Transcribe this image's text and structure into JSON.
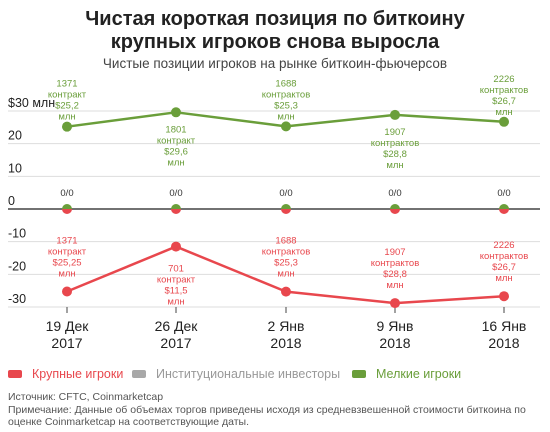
{
  "title_line1": "Чистая короткая позиция по биткоину",
  "title_line2": "крупных игроков снова выросла",
  "subtitle": "Чистые позиции игроков на рынке биткоин-фьючерсов",
  "chart_data": {
    "type": "line",
    "categories": [
      [
        "19 Дек",
        "2017"
      ],
      [
        "26 Дек",
        "2017"
      ],
      [
        "2 Янв",
        "2018"
      ],
      [
        "9 Янв",
        "2018"
      ],
      [
        "16 Янв",
        "2018"
      ]
    ],
    "y_ticks": [
      "$30 млн",
      "20",
      "10",
      "0",
      "-10",
      "-20",
      "-30"
    ],
    "ylim": [
      -30,
      30
    ],
    "grid": true,
    "legend_position": "bottom",
    "series": [
      {
        "name": "Крупные игроки",
        "color": "#e8474d",
        "values": [
          -25.25,
          -11.5,
          -25.3,
          -28.8,
          -26.7
        ],
        "labels": [
          [
            "1371",
            "контракт",
            "$25,25",
            "млн"
          ],
          [
            "701",
            "контракт",
            "$11,5",
            "млн"
          ],
          [
            "1688",
            "контрактов",
            "$25,3",
            "млн"
          ],
          [
            "1907",
            "контрактов",
            "$28,8",
            "млн"
          ],
          [
            "2226",
            "контрактов",
            "$26,7",
            "млн"
          ]
        ]
      },
      {
        "name": "Институциональные инвесторы",
        "color": "#a8a8a8",
        "values": [
          0,
          0,
          0,
          0,
          0
        ],
        "labels": [
          [
            "0/0"
          ],
          [
            "0/0"
          ],
          [
            "0/0"
          ],
          [
            "0/0"
          ],
          [
            "0/0"
          ]
        ]
      },
      {
        "name": "Мелкие игроки",
        "color": "#6a9e3a",
        "values": [
          25.2,
          29.6,
          25.3,
          28.8,
          26.7
        ],
        "labels": [
          [
            "1371",
            "контракт",
            "$25,2",
            "млн"
          ],
          [
            "1801",
            "контракт",
            "$29,6",
            "млн"
          ],
          [
            "1688",
            "контрактов",
            "$25,3",
            "млн"
          ],
          [
            "1907",
            "контрактов",
            "$28,8",
            "млн"
          ],
          [
            "2226",
            "контрактов",
            "$26,7",
            "млн"
          ]
        ]
      }
    ]
  },
  "footer": {
    "source": "Источник: CFTC, Coinmarketcap",
    "note": "Примечание: Данные об объемах торгов приведены исходя из средневзвешенной стоимости биткоина по оценке Coinmarketcap на соответствующие даты."
  }
}
